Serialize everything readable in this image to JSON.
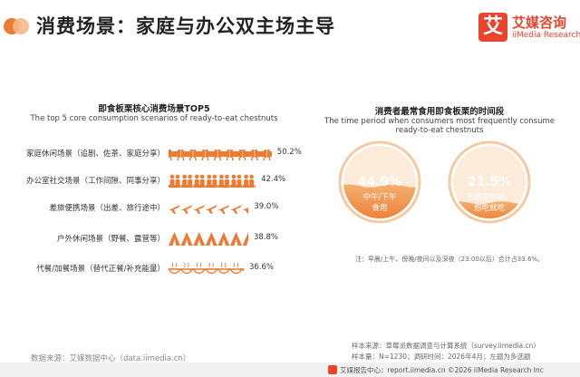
{
  "header": {
    "title": "消费场景：家庭与办公双主场主导",
    "logo": {
      "mark": "艾",
      "cn": "艾媒咨询",
      "en": "iiMedia Research"
    }
  },
  "left_chart": {
    "title_cn": "即食板栗核心消费场景TOP5",
    "title_en": "The top 5 core consumption scenarios of ready-to-eat chestnuts"
  },
  "right_chart": {
    "title_cn": "消费者最常食用即食板栗的时间段",
    "title_en_1": "The time period when consumers most frequently consume",
    "title_en_2": "ready-to-eat chestnuts",
    "note": "注：早晨/上午、傍晚/夜间以及深夜（23:00以后）合计占33.6%。"
  },
  "chart_data": [
    {
      "type": "bar",
      "categories": [
        "家庭休闲场景（追剧、佐茶、家庭分享）",
        "办公室社交场景（工作间隙、同事分享）",
        "差旅便携场景（出差、旅行途中）",
        "户外休闲场景（野餐、露营等）",
        "代餐/加餐场景（替代正餐/补充能量）"
      ],
      "values": [
        50.2,
        42.4,
        39.0,
        38.8,
        36.6
      ],
      "labels": [
        "50.2%",
        "42.4%",
        "39.0%",
        "38.8%",
        "36.6%"
      ],
      "icons": [
        "sofa-icon",
        "people-icon",
        "plane-icon",
        "tent-icon",
        "bowl-icon"
      ],
      "xlim": [
        0,
        60
      ],
      "color": "#ef7a32"
    },
    {
      "type": "pie",
      "categories": [
        "中午/下午食用",
        "无固定时间，想吃就吃"
      ],
      "values": [
        44.9,
        21.5
      ],
      "labels": [
        "44.9%",
        "21.5%"
      ]
    }
  ],
  "circles": [
    {
      "pct": "44.9%",
      "line1": "中午/下午",
      "line2": "食用"
    },
    {
      "pct": "21.5%",
      "line1": "无固定时间，",
      "line2": "想吃就吃"
    }
  ],
  "source": {
    "left": "数据来源：艾媒数据中心（data.iimedia.cn）",
    "right_1": "样本来源：草莓派数据调查与计算系统（survey.iimedia.cn）",
    "right_2": "样本量：N=1230；调研时间：2026年4月；左题为多选题"
  },
  "footer": {
    "text": "艾媒报告中心：report.iimedia.cn      ©2026  iiMedia Research  Inc"
  },
  "colors": {
    "accent": "#ef7a32",
    "brand": "#e8452c",
    "light": "#f6b88a"
  }
}
